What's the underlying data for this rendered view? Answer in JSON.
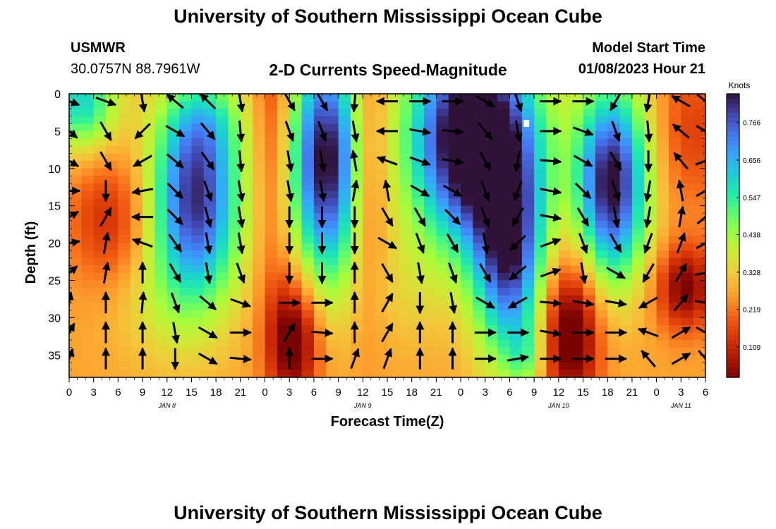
{
  "header": {
    "title": "University of Southern Mississippi Ocean Cube",
    "station": "USMWR",
    "coords": "30.0757N  88.7961W",
    "chart_title": "2-D Currents Speed-Magnitude",
    "model_start_label": "Model Start Time",
    "model_start_value": "01/08/2023 Hour 21"
  },
  "footer": {
    "title": "University of Southern Mississippi Ocean Cube"
  },
  "chart_data": {
    "type": "heatmap",
    "title": "2-D Currents Speed-Magnitude",
    "xlabel": "Forecast Time(Z)",
    "ylabel": "Depth (ft)",
    "x_ticks": [
      "0",
      "3",
      "6",
      "9",
      "12",
      "15",
      "18",
      "21",
      "0",
      "3",
      "6",
      "9",
      "12",
      "15",
      "18",
      "21",
      "0",
      "3",
      "6",
      "9",
      "12",
      "15",
      "18",
      "21",
      "0",
      "3",
      "6"
    ],
    "date_labels": [
      {
        "label": "JAN 8",
        "tick_index": 4
      },
      {
        "label": "JAN 9",
        "tick_index": 12
      },
      {
        "label": "JAN 10",
        "tick_index": 20
      },
      {
        "label": "JAN 11",
        "tick_index": 25
      }
    ],
    "y_ticks": [
      0,
      5,
      10,
      15,
      20,
      25,
      30,
      35
    ],
    "ylim": [
      0,
      38
    ],
    "xlim_hours": [
      0,
      78
    ],
    "colorbar": {
      "label": "Knots",
      "ticks": [
        "0.766",
        "0.656",
        "0.547",
        "0.438",
        "0.328",
        "0.219",
        "0.109"
      ],
      "range": [
        0.02,
        0.85
      ],
      "colors": [
        "#30123b",
        "#4145ab",
        "#4675ed",
        "#39a2fc",
        "#1bcfd4",
        "#24eca6",
        "#61fc6c",
        "#a4fc3b",
        "#d1e834",
        "#f3c63a",
        "#fe9b2d",
        "#f36315",
        "#d93806",
        "#b11901",
        "#7a0402"
      ]
    },
    "speed_field": {
      "hour_step": 1.5,
      "depth_step": 1,
      "descriptor": "speed in knots; core maxima near hours 14-18 and 45-58 and 66-70; minima near hour 5 depth 17 and hour 27 depth 35",
      "blobs": [
        {
          "h": 1.5,
          "d": 1,
          "sh": 3,
          "sd": 4.5,
          "amp": 0.33
        },
        {
          "h": 5,
          "d": 17,
          "sh": 3.5,
          "sd": 6,
          "amp": -0.15
        },
        {
          "h": 15.5,
          "d": 14,
          "sh": 3.8,
          "sd": 10,
          "amp": 0.55
        },
        {
          "h": 17,
          "d": 4,
          "sh": 3,
          "sd": 4,
          "amp": 0.1
        },
        {
          "h": 27.5,
          "d": 33,
          "sh": 2.2,
          "sd": 6,
          "amp": -0.3
        },
        {
          "h": 25,
          "d": 0,
          "sh": 1.5,
          "sd": 20,
          "amp": -0.12
        },
        {
          "h": 31.5,
          "d": 9,
          "sh": 3,
          "sd": 11,
          "amp": 0.6
        },
        {
          "h": 36.5,
          "d": 10,
          "sh": 1.8,
          "sd": 14,
          "amp": -0.15
        },
        {
          "h": 49.5,
          "d": 6,
          "sh": 5.5,
          "sd": 10,
          "amp": 0.72
        },
        {
          "h": 54,
          "d": 22,
          "sh": 3,
          "sd": 10,
          "amp": 0.48
        },
        {
          "h": 56,
          "d": 35,
          "sh": 1.5,
          "sd": 3,
          "amp": 0.12
        },
        {
          "h": 61.5,
          "d": 32,
          "sh": 2.5,
          "sd": 7,
          "amp": -0.32
        },
        {
          "h": 66.5,
          "d": 12,
          "sh": 3,
          "sd": 9,
          "amp": 0.6
        },
        {
          "h": 76.5,
          "d": 5,
          "sh": 3,
          "sd": 7,
          "amp": -0.12
        },
        {
          "h": 75.5,
          "d": 26,
          "sh": 2.5,
          "sd": 4,
          "amp": -0.25
        },
        {
          "h": 40,
          "d": 26,
          "sh": 5,
          "sd": 6,
          "amp": 0.05
        },
        {
          "h": 10,
          "d": 28,
          "sh": 4,
          "sd": 6,
          "amp": 0.06
        }
      ],
      "base": 0.27
    },
    "vector_grid": {
      "hours": [
        0,
        4.5,
        9,
        13,
        17,
        21,
        27,
        31,
        35,
        39,
        43,
        47,
        51,
        55,
        59,
        63,
        67,
        71,
        75,
        78
      ],
      "depths": [
        1,
        5,
        9,
        13,
        16.5,
        20,
        24,
        28,
        32,
        35.5
      ],
      "descriptor": "current direction in degrees clockwise from +x axis (screen), per column",
      "angles_deg": [
        [
          20,
          40,
          30,
          0,
          330,
          350,
          320,
          280,
          300,
          290
        ],
        [
          20,
          60,
          60,
          90,
          300,
          280,
          280,
          270,
          270,
          270
        ],
        [
          80,
          135,
          150,
          170,
          180,
          200,
          270,
          275,
          270,
          270
        ],
        [
          220,
          30,
          40,
          45,
          45,
          55,
          60,
          70,
          80,
          90
        ],
        [
          225,
          50,
          55,
          70,
          75,
          80,
          80,
          40,
          30,
          30
        ],
        [
          80,
          85,
          85,
          80,
          80,
          80,
          70,
          20,
          0,
          5
        ],
        [
          60,
          70,
          80,
          80,
          90,
          90,
          90,
          0,
          300,
          270
        ],
        [
          60,
          70,
          80,
          80,
          90,
          90,
          90,
          0,
          5,
          0
        ],
        [
          95,
          80,
          260,
          280,
          90,
          90,
          270,
          270,
          270,
          290
        ],
        [
          180,
          180,
          200,
          260,
          60,
          30,
          60,
          300,
          300,
          290
        ],
        [
          0,
          10,
          20,
          30,
          60,
          70,
          80,
          90,
          270,
          270
        ],
        [
          0,
          5,
          10,
          30,
          45,
          60,
          70,
          80,
          270,
          270
        ],
        [
          30,
          50,
          60,
          70,
          70,
          80,
          60,
          30,
          0,
          0
        ],
        [
          70,
          80,
          100,
          110,
          120,
          135,
          140,
          150,
          0,
          350
        ],
        [
          0,
          0,
          5,
          10,
          10,
          340,
          340,
          5,
          10,
          0
        ],
        [
          0,
          20,
          30,
          45,
          60,
          70,
          80,
          10,
          0,
          0
        ],
        [
          120,
          70,
          60,
          70,
          80,
          60,
          30,
          10,
          0,
          0
        ],
        [
          100,
          85,
          90,
          100,
          100,
          110,
          120,
          150,
          200,
          230
        ],
        [
          210,
          220,
          230,
          260,
          280,
          290,
          300,
          310,
          330,
          330
        ],
        [
          40,
          30,
          340,
          330,
          320,
          330,
          350,
          10,
          30,
          50
        ]
      ]
    }
  }
}
